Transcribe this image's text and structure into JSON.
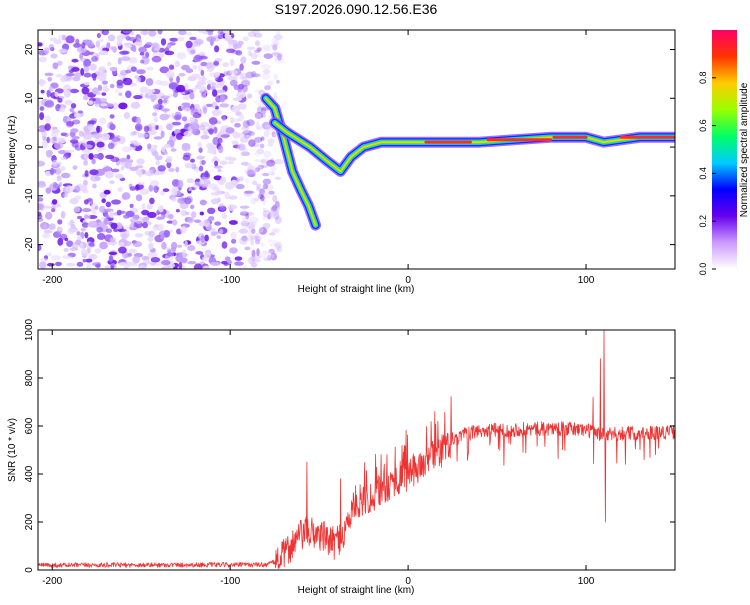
{
  "title": "S197.2026.090.12.56.E36",
  "chart_data": [
    {
      "type": "heatmap",
      "title": "S197.2026.090.12.56.E36",
      "xlabel": "Height of straight line (km)",
      "ylabel": "Frequency (Hz)",
      "xlim": [
        -208,
        150
      ],
      "ylim": [
        -25,
        24
      ],
      "xticks": [
        "-200",
        "-100",
        "0",
        "100"
      ],
      "xtick_values": [
        -200,
        -100,
        0,
        100
      ],
      "yticks": [
        "20",
        "10",
        "0",
        "-10",
        "-20"
      ],
      "ytick_values": [
        20,
        10,
        0,
        -10,
        -20
      ],
      "colorbar": {
        "label": "Normalized spectral amplitude",
        "range": [
          0,
          1
        ],
        "ticks": [
          "0.0",
          "0.2",
          "0.4",
          "0.6",
          "0.8"
        ],
        "tick_values": [
          0,
          0.2,
          0.4,
          0.6,
          0.8
        ],
        "colors": [
          "#ffffff",
          "#cc99ff",
          "#6600ee",
          "#0000ff",
          "#00ccff",
          "#00ff66",
          "#99ff00",
          "#ffcc00",
          "#ff3300",
          "#ff0066"
        ]
      },
      "noise_region_x": [
        -208,
        -78
      ],
      "ridges": [
        {
          "name": "descending-branch",
          "points": [
            [
              -80,
              10
            ],
            [
              -75,
              8
            ],
            [
              -70,
              2
            ],
            [
              -65,
              -5
            ],
            [
              -60,
              -9
            ],
            [
              -56,
              -12
            ],
            [
              -52,
              -16
            ]
          ]
        },
        {
          "name": "main-ridge",
          "points": [
            [
              -75,
              5
            ],
            [
              -68,
              3
            ],
            [
              -55,
              0
            ],
            [
              -45,
              -3
            ],
            [
              -38,
              -5
            ],
            [
              -32,
              -2
            ],
            [
              -25,
              0
            ],
            [
              -15,
              1
            ],
            [
              0,
              1
            ],
            [
              20,
              1
            ],
            [
              40,
              1
            ],
            [
              60,
              1.5
            ],
            [
              80,
              2
            ],
            [
              100,
              2
            ],
            [
              110,
              1
            ],
            [
              130,
              2
            ],
            [
              150,
              2
            ]
          ]
        }
      ]
    },
    {
      "type": "line",
      "xlabel": "Height of straight line (km)",
      "ylabel": "SNR (10 * v/v)",
      "xlim": [
        -208,
        150
      ],
      "ylim": [
        0,
        1000
      ],
      "xticks": [
        "-200",
        "-100",
        "0",
        "100"
      ],
      "xtick_values": [
        -200,
        -100,
        0,
        100
      ],
      "yticks": [
        "1000",
        "800",
        "600",
        "400",
        "200",
        "0"
      ],
      "ytick_values": [
        1000,
        800,
        600,
        400,
        200,
        0
      ],
      "line_color": "#ee3333",
      "baseline_profile": [
        [
          -208,
          20
        ],
        [
          -80,
          22
        ],
        [
          -72,
          40
        ],
        [
          -66,
          100
        ],
        [
          -58,
          160
        ],
        [
          -50,
          150
        ],
        [
          -42,
          110
        ],
        [
          -36,
          150
        ],
        [
          -30,
          280
        ],
        [
          -22,
          300
        ],
        [
          -14,
          340
        ],
        [
          -6,
          380
        ],
        [
          0,
          400
        ],
        [
          10,
          450
        ],
        [
          20,
          500
        ],
        [
          30,
          560
        ],
        [
          40,
          580
        ],
        [
          60,
          585
        ],
        [
          80,
          590
        ],
        [
          100,
          585
        ],
        [
          110,
          560
        ],
        [
          120,
          570
        ],
        [
          150,
          575
        ]
      ],
      "spikes": [
        [
          -57,
          450
        ],
        [
          -38,
          380
        ],
        [
          110,
          1000
        ],
        [
          111,
          200
        ],
        [
          108,
          880
        ],
        [
          104,
          720
        ]
      ]
    }
  ]
}
